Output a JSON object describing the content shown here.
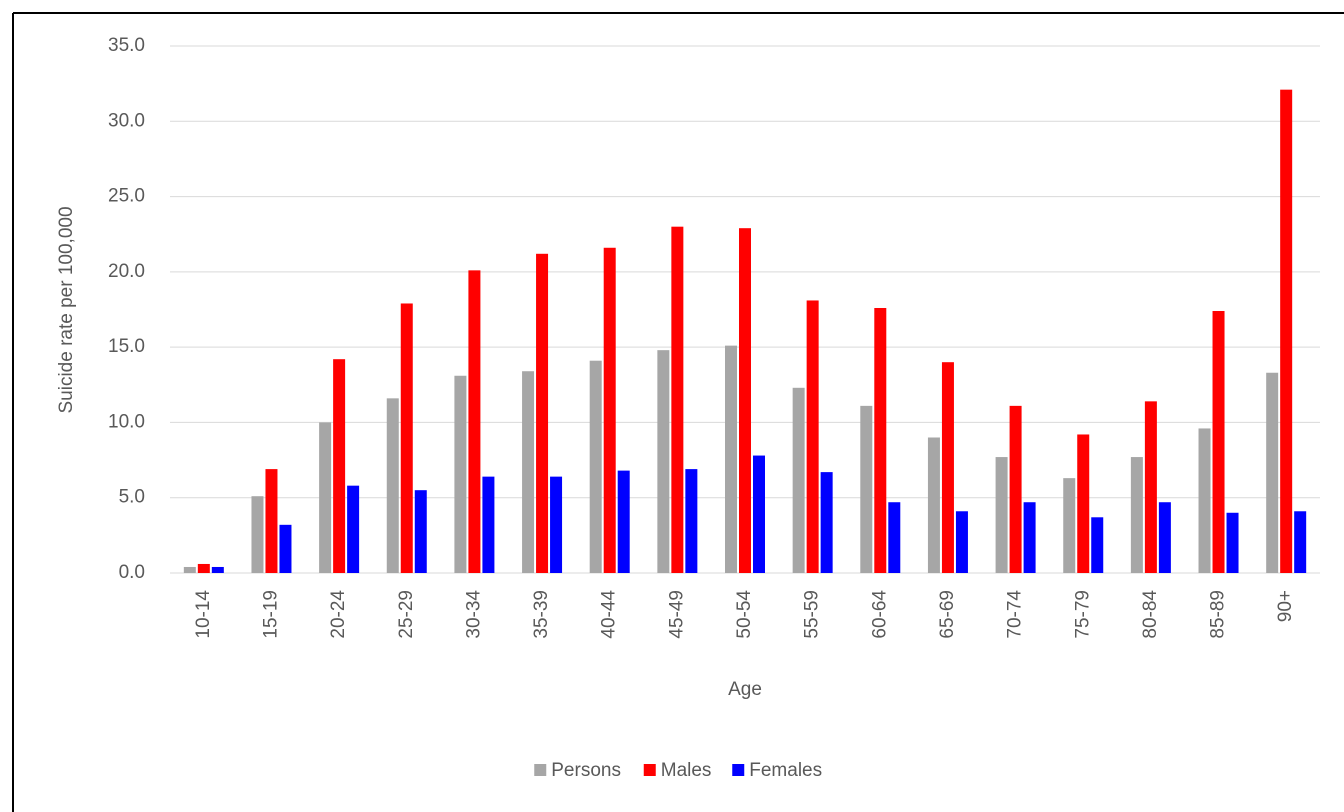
{
  "chart_data": {
    "type": "bar",
    "x_label": "Age",
    "y_label": "Suicide rate per 100,000",
    "categories": [
      "10-14",
      "15-19",
      "20-24",
      "25-29",
      "30-34",
      "35-39",
      "40-44",
      "45-49",
      "50-54",
      "55-59",
      "60-64",
      "65-69",
      "70-74",
      "75-79",
      "80-84",
      "85-89",
      "90+"
    ],
    "series": [
      {
        "name": "Persons",
        "color": "#a6a6a6",
        "values": [
          0.4,
          5.1,
          10.0,
          11.6,
          13.1,
          13.4,
          14.1,
          14.8,
          15.1,
          12.3,
          11.1,
          9.0,
          7.7,
          6.3,
          7.7,
          9.6,
          13.3
        ]
      },
      {
        "name": "Males",
        "color": "#ff0000",
        "values": [
          0.6,
          6.9,
          14.2,
          17.9,
          20.1,
          21.2,
          21.6,
          23.0,
          22.9,
          18.1,
          17.6,
          14.0,
          11.1,
          9.2,
          11.4,
          17.4,
          32.1
        ]
      },
      {
        "name": "Females",
        "color": "#0000ff",
        "values": [
          0.4,
          3.2,
          5.8,
          5.5,
          6.4,
          6.4,
          6.8,
          6.9,
          7.8,
          6.7,
          4.7,
          4.1,
          4.7,
          3.7,
          4.7,
          4.0,
          4.1
        ]
      }
    ],
    "ylim": [
      0,
      35
    ],
    "yticks": [
      {
        "value": 0,
        "label": "0.0"
      },
      {
        "value": 5,
        "label": "5.0"
      },
      {
        "value": 10,
        "label": "10.0"
      },
      {
        "value": 15,
        "label": "15.0"
      },
      {
        "value": 20,
        "label": "20.0"
      },
      {
        "value": 25,
        "label": "25.0"
      },
      {
        "value": 30,
        "label": "30.0"
      },
      {
        "value": 35,
        "label": "35.0"
      }
    ],
    "grid": true,
    "legend": "bottom"
  }
}
